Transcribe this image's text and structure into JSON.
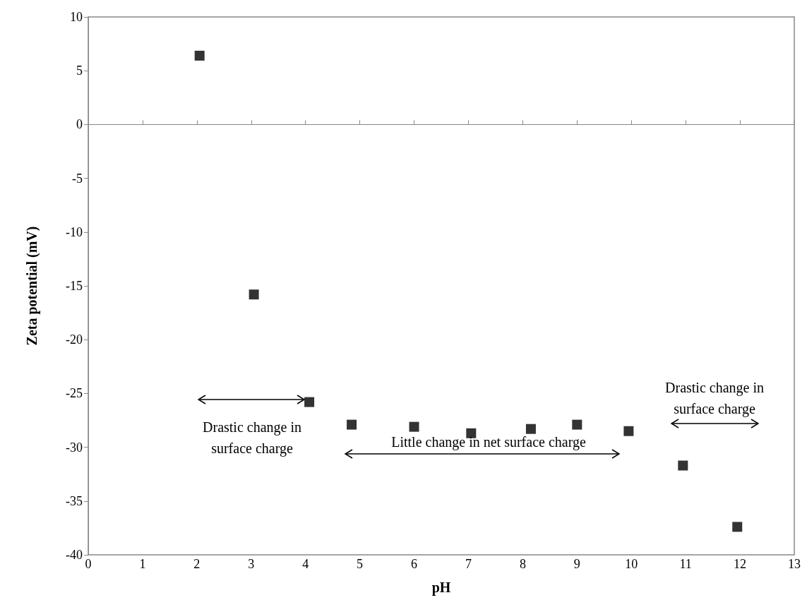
{
  "chart_data": {
    "type": "scatter",
    "xlabel": "pH",
    "ylabel": "Zeta potential (mV)",
    "x": [
      2.05,
      3.05,
      4.07,
      4.85,
      6.0,
      7.05,
      8.15,
      9.0,
      9.95,
      10.95,
      11.95
    ],
    "values": [
      6.4,
      -15.8,
      -25.8,
      -27.9,
      -28.1,
      -28.7,
      -28.3,
      -27.9,
      -28.5,
      -31.7,
      -37.4
    ],
    "color": "#000000",
    "marker": "square",
    "xlim": [
      0,
      13
    ],
    "xticks": [
      0,
      1,
      2,
      3,
      4,
      5,
      6,
      7,
      8,
      9,
      10,
      11,
      12,
      13
    ],
    "ylim": [
      -40,
      10
    ],
    "yticks": [
      -40,
      -35,
      -30,
      -25,
      -20,
      -15,
      -10,
      -5,
      0,
      5,
      10
    ],
    "annotations": [
      "Drastic change in\nsurface charge",
      "Little change in net surface charge",
      "Drastic change in\nsurface charge"
    ]
  }
}
